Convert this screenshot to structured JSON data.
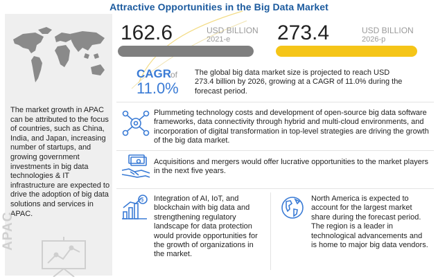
{
  "header": {
    "title": "Attractive Opportunities in the Big Data Market"
  },
  "sidebar": {
    "description": "The market growth in APAC can be attributed to the focus of countries, such as China, India, and Japan, increasing number of startups, and growing government investments in big data technologies & IT infrastructure are expected to drive the adoption of big data solutions and services in APAC.",
    "region_label": "APAC",
    "icons": [
      "world-map-icon",
      "presentation-chart-icon"
    ]
  },
  "market_size": {
    "value_2021": "162.6",
    "unit_2021": "USD BILLION",
    "year_2021": "2021-e",
    "value_2026": "273.4",
    "unit_2026": "USD BILLION",
    "year_2026": "2026-p",
    "bar_2021_color": "#7f7f7f",
    "bar_2026_color": "#f5c518"
  },
  "cagr": {
    "label": "CAGR",
    "of": "of",
    "value": "11.0%",
    "summary": "The global big data market size is projected to reach USD 273.4 billion by 2026, growing at a CAGR of 11.0% during the forecast period."
  },
  "insights": [
    {
      "icon": "network-gears-icon",
      "text": "Plummeting technology costs and development of open-source big data software frameworks, data connectivity through hybrid and multi-cloud environments, and incorporation of digital transformation in top-level strategies are driving the growth of the big data market."
    },
    {
      "icon": "money-handshake-icon",
      "text": "Acquisitions and mergers would offer lucrative opportunities to the market players in the next five years."
    },
    {
      "icon": "growth-dollar-icon",
      "text": "Integration of AI, IoT, and blockchain with big data and strengthening regulatory landscape for data protection would provide opportunities for the growth of organizations in the market."
    },
    {
      "icon": "globe-americas-icon",
      "text": "North America is expected to account for the largest market share during the forecast period. The region is a leader in technological advancements and is home to major big data vendors."
    }
  ],
  "colors": {
    "title": "#1b5a9e",
    "accent": "#3a7bd5",
    "highlight": "#f5c518"
  }
}
